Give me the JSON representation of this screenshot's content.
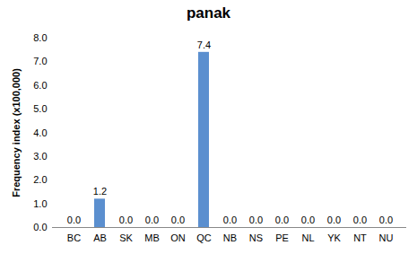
{
  "chart_data": {
    "type": "bar",
    "title": "panak",
    "y_label": "Frequency index (x100,000)",
    "categories": [
      "BC",
      "AB",
      "SK",
      "MB",
      "ON",
      "QC",
      "NB",
      "NS",
      "PE",
      "NL",
      "YK",
      "NT",
      "NU"
    ],
    "values": [
      0,
      1.2,
      0,
      0,
      0,
      7.4,
      0,
      0,
      0,
      0,
      0,
      0,
      0
    ],
    "value_labels": [
      "0.0",
      "1.2",
      "0.0",
      "0.0",
      "0.0",
      "7.4",
      "0.0",
      "0.0",
      "0.0",
      "0.0",
      "0.0",
      "0.0",
      "0.0"
    ],
    "data_labels": true,
    "color": "#5b8fcf",
    "ylim": [
      0,
      8
    ],
    "yticks": [
      {
        "value": 0,
        "label": "0.0"
      },
      {
        "value": 1,
        "label": "1.0"
      },
      {
        "value": 2,
        "label": "2.0"
      },
      {
        "value": 3,
        "label": "3.0"
      },
      {
        "value": 4,
        "label": "4.0"
      },
      {
        "value": 5,
        "label": "5.0"
      },
      {
        "value": 6,
        "label": "6.0"
      },
      {
        "value": 7,
        "label": "7.0"
      },
      {
        "value": 8,
        "label": "8.0"
      }
    ],
    "grid": false
  }
}
